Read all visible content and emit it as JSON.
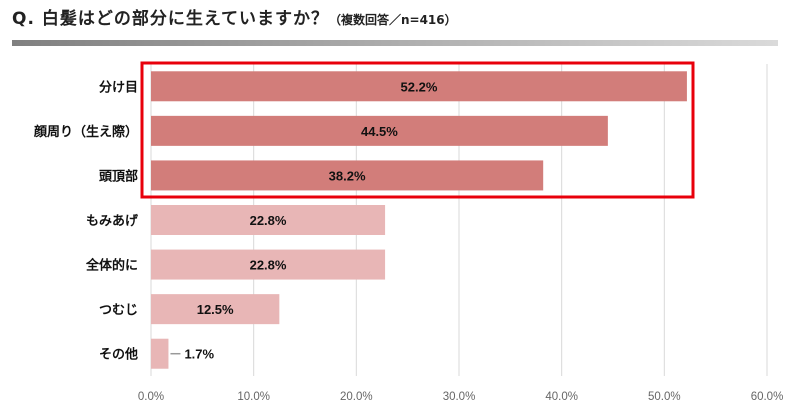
{
  "title": {
    "question": "Q. 白髪はどの部分に生えていますか？",
    "note": "（複数回答／n=416）"
  },
  "colors": {
    "highlight": "#d27d7a",
    "normal": "#e8b6b6",
    "box": "#e8000b",
    "grid": "#d9d9d9"
  },
  "chart_data": {
    "type": "bar",
    "orientation": "horizontal",
    "title": "Q. 白髪はどの部分に生えていますか？（複数回答／n=416）",
    "categories": [
      "分け目",
      "顔周り（生え際）",
      "頭頂部",
      "もみあげ",
      "全体的に",
      "つむじ",
      "その他"
    ],
    "values": [
      52.2,
      44.5,
      38.2,
      22.8,
      22.8,
      12.5,
      1.7
    ],
    "labels": [
      "52.2%",
      "44.5%",
      "38.2%",
      "22.8%",
      "22.8%",
      "12.5%",
      "1.7%"
    ],
    "highlighted": [
      true,
      true,
      true,
      false,
      false,
      false,
      false
    ],
    "xlim": [
      0,
      60
    ],
    "ticks": [
      0,
      10,
      20,
      30,
      40,
      50,
      60
    ],
    "tick_labels": [
      "0.0%",
      "10.0%",
      "20.0%",
      "30.0%",
      "40.0%",
      "50.0%",
      "60.0%"
    ],
    "grid": true,
    "xlabel": "",
    "ylabel": ""
  }
}
